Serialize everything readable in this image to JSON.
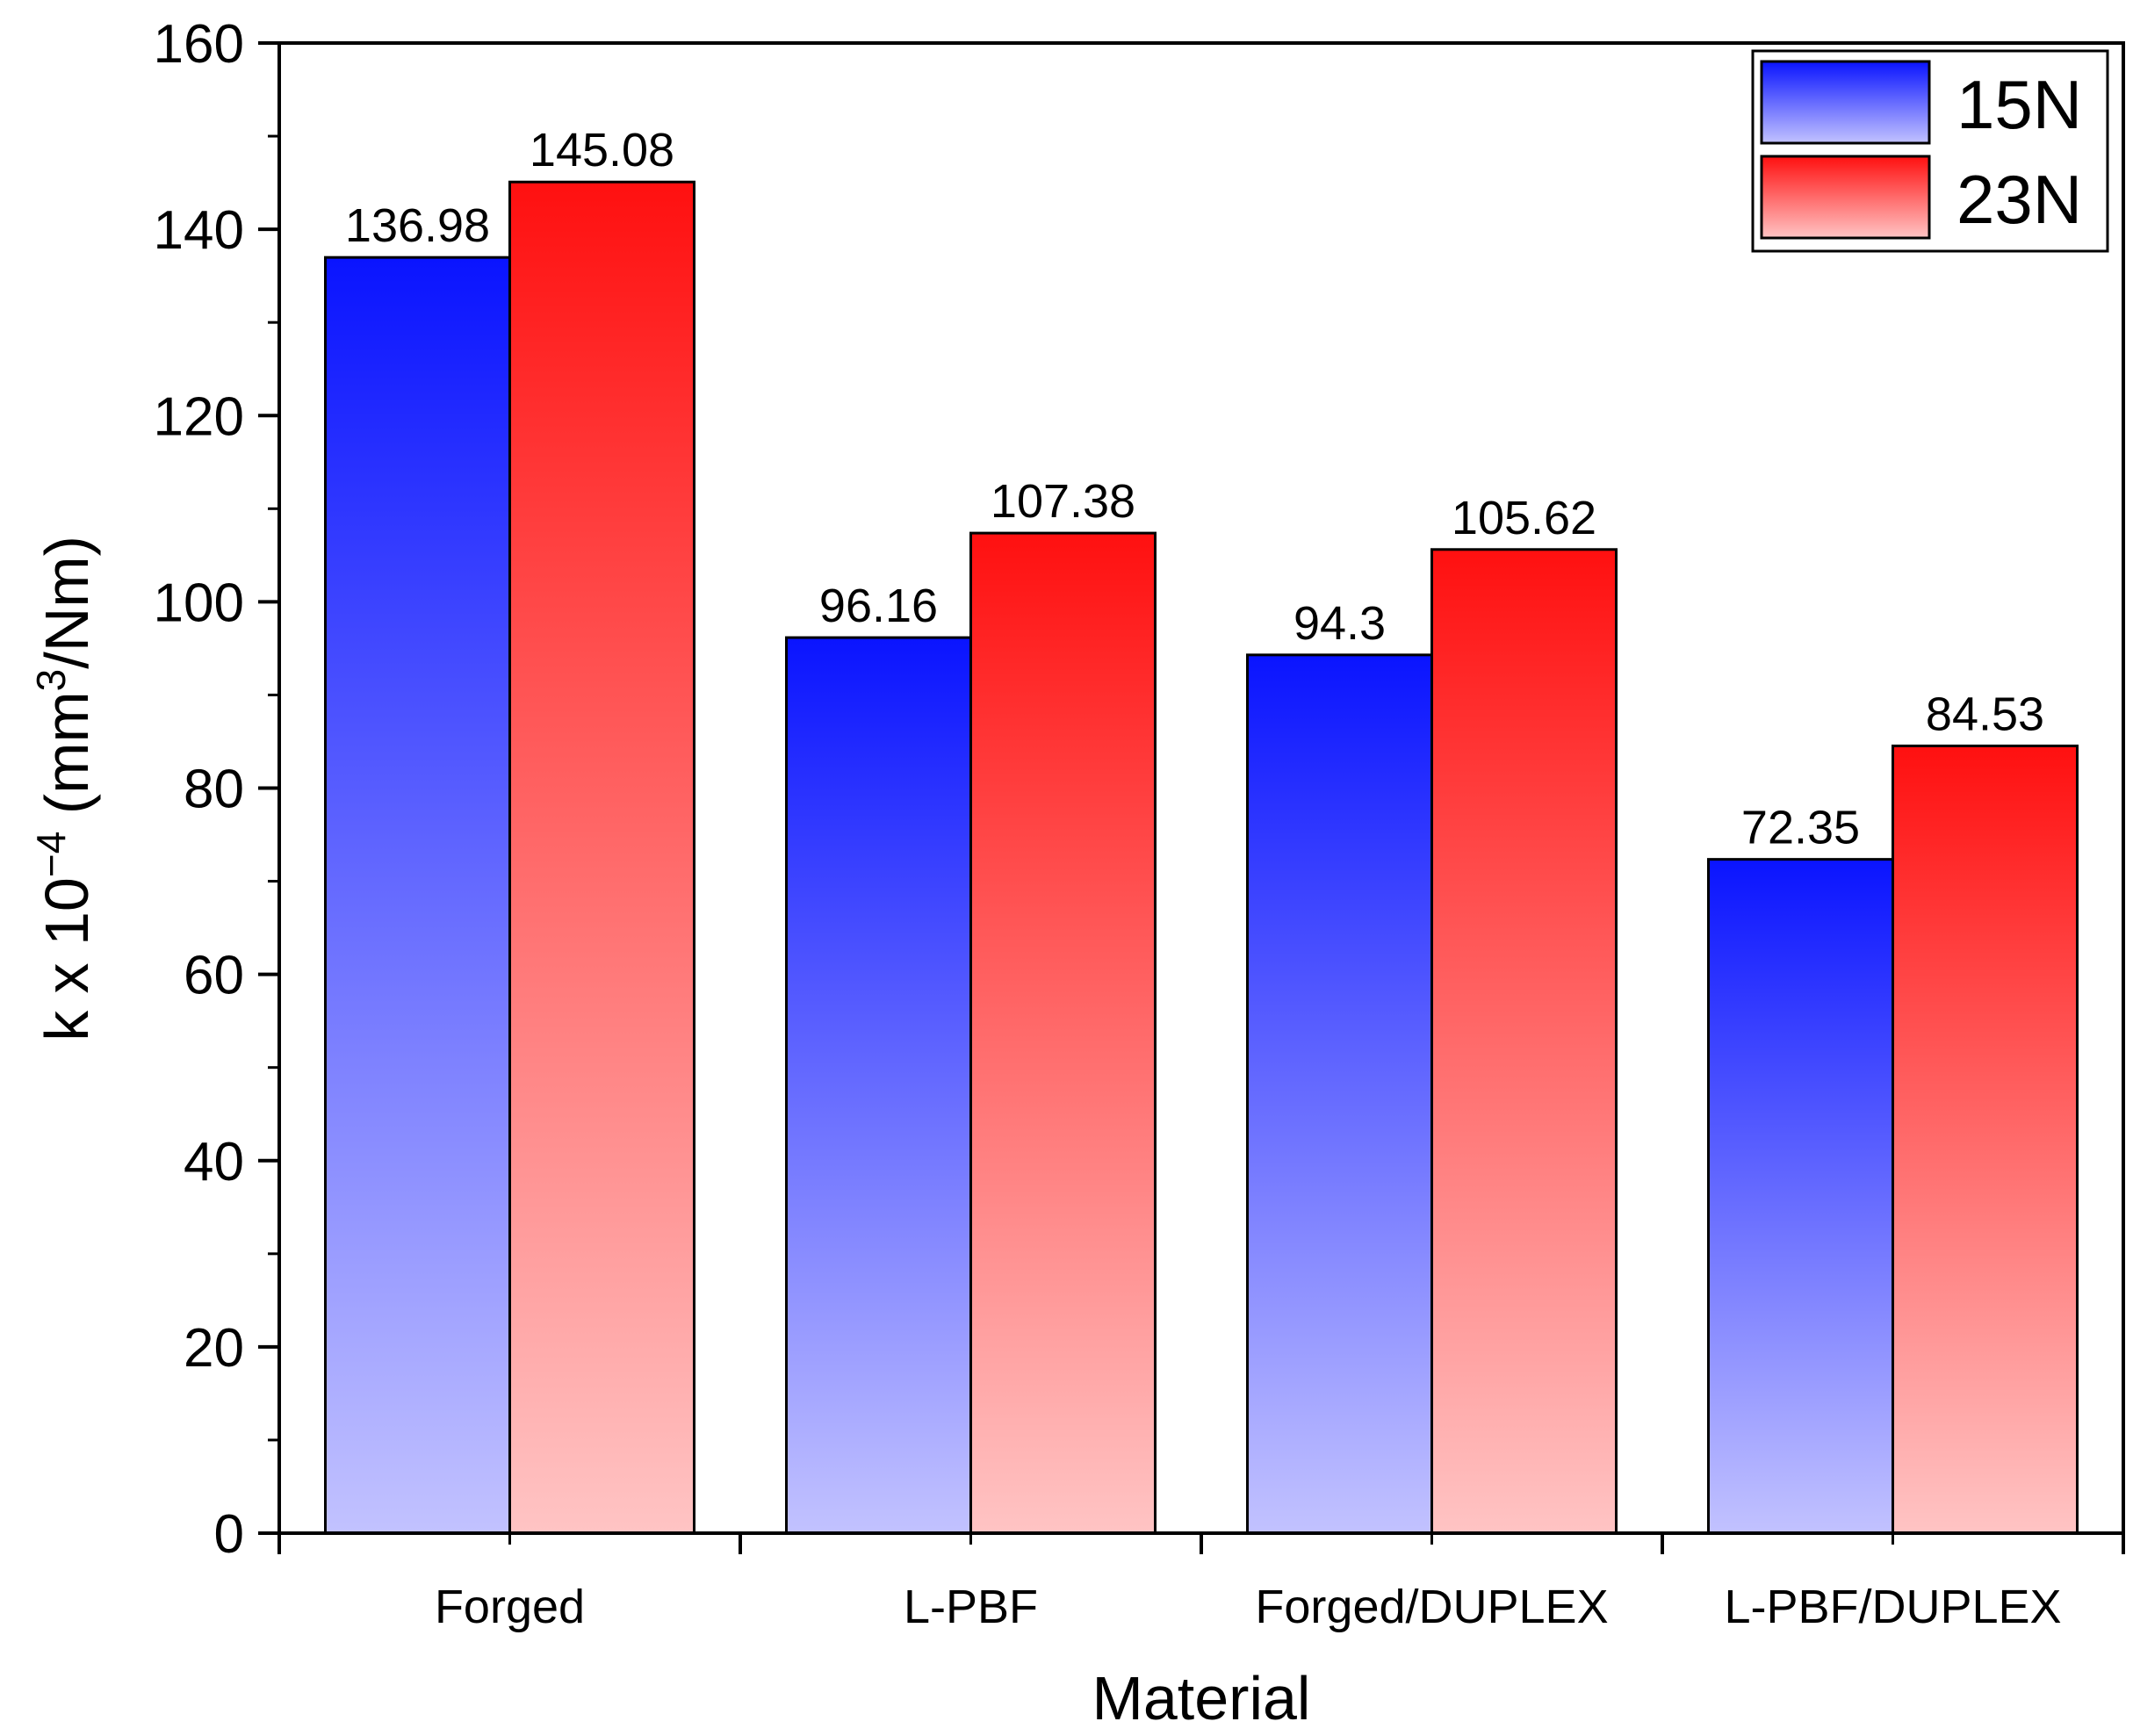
{
  "chart_data": {
    "type": "bar",
    "categories": [
      "Forged",
      "L-PBF",
      "Forged/DUPLEX",
      "L-PBF/DUPLEX"
    ],
    "series": [
      {
        "name": "15N",
        "values": [
          136.98,
          96.16,
          94.3,
          72.35
        ],
        "color_top": "#0a14ff",
        "color_bottom": "#c2c2ff"
      },
      {
        "name": "23N",
        "values": [
          145.08,
          107.38,
          105.62,
          84.53
        ],
        "color_top": "#ff1010",
        "color_bottom": "#ffc4c4"
      }
    ],
    "value_labels": [
      [
        "136.98",
        "96.16",
        "94.3",
        "72.35"
      ],
      [
        "145.08",
        "107.38",
        "105.62",
        "84.53"
      ]
    ],
    "xlabel": "Material",
    "ylabel": {
      "main": "k x 10",
      "exp1": "−4",
      "units_open": " (mm",
      "exp2": "3",
      "units_close": "/Nm)"
    },
    "ylim": [
      0,
      160
    ],
    "yticks": [
      "0",
      "20",
      "40",
      "60",
      "80",
      "100",
      "120",
      "140",
      "160"
    ],
    "legend_position": "top-right",
    "grid": false
  }
}
